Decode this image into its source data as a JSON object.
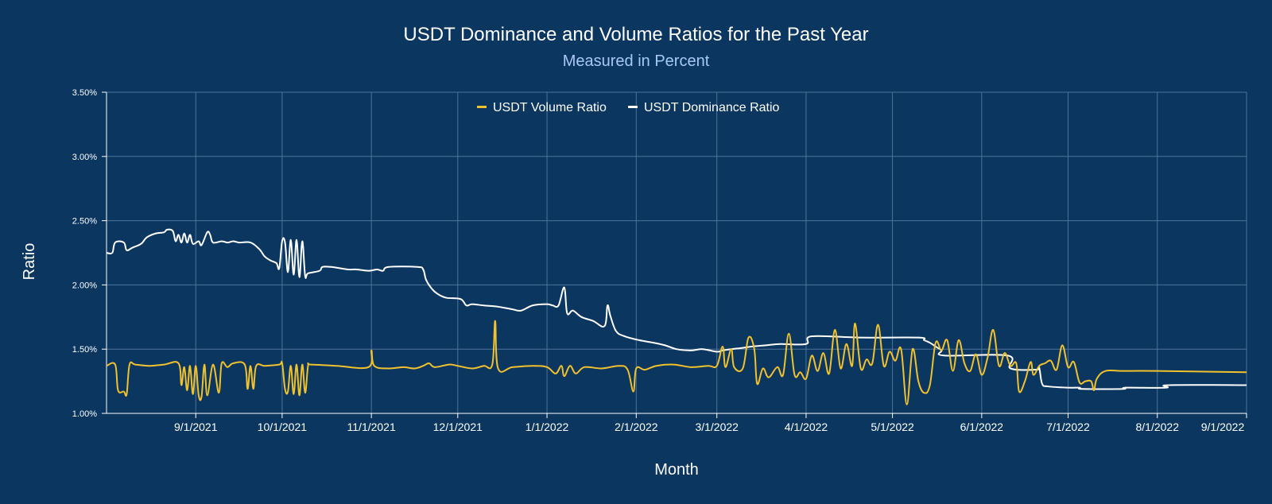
{
  "chart_data": {
    "type": "line",
    "title": "USDT Dominance and Volume Ratios for the Past Year",
    "subtitle": "Measured in Percent",
    "xlabel": "Month",
    "ylabel": "Ratio",
    "ylim": [
      1.0,
      3.5
    ],
    "xlim": [
      "2021-08-01",
      "2022-09-01"
    ],
    "y_ticks": [
      "1.00%",
      "1.50%",
      "2.00%",
      "2.50%",
      "3.00%",
      "3.50%"
    ],
    "x_ticks": [
      "9/1/2021",
      "10/1/2021",
      "11/1/2021",
      "12/1/2021",
      "1/1/2022",
      "2/1/2022",
      "3/1/2022",
      "4/1/2022",
      "5/1/2022",
      "6/1/2022",
      "7/1/2022",
      "8/1/2022",
      "9/1/2022"
    ],
    "grid": true,
    "legend_position": "top-center",
    "colors": {
      "background": "#0a3660",
      "grid": "#4f7398",
      "volume": "#f2c12e",
      "dominance": "#ffffff",
      "subtitle": "#a8c8f5"
    },
    "series": [
      {
        "name": "USDT Volume Ratio",
        "color": "#f2c12e",
        "points": [
          [
            "2021-08-01",
            1.37
          ],
          [
            "2021-08-04",
            1.38
          ],
          [
            "2021-08-05",
            1.18
          ],
          [
            "2021-08-07",
            1.17
          ],
          [
            "2021-08-08",
            1.15
          ],
          [
            "2021-08-09",
            1.38
          ],
          [
            "2021-08-11",
            1.38
          ],
          [
            "2021-08-16",
            1.37
          ],
          [
            "2021-08-21",
            1.38
          ],
          [
            "2021-08-26",
            1.39
          ],
          [
            "2021-08-27",
            1.22
          ],
          [
            "2021-08-28",
            1.36
          ],
          [
            "2021-08-29",
            1.18
          ],
          [
            "2021-08-30",
            1.37
          ],
          [
            "2021-08-31",
            1.15
          ],
          [
            "2021-09-01",
            1.37
          ],
          [
            "2021-09-02",
            1.14
          ],
          [
            "2021-09-03",
            1.13
          ],
          [
            "2021-09-04",
            1.38
          ],
          [
            "2021-09-05",
            1.14
          ],
          [
            "2021-09-07",
            1.38
          ],
          [
            "2021-09-09",
            1.16
          ],
          [
            "2021-09-10",
            1.39
          ],
          [
            "2021-09-12",
            1.36
          ],
          [
            "2021-09-14",
            1.39
          ],
          [
            "2021-09-18",
            1.38
          ],
          [
            "2021-09-19",
            1.19
          ],
          [
            "2021-09-20",
            1.37
          ],
          [
            "2021-09-21",
            1.19
          ],
          [
            "2021-09-22",
            1.37
          ],
          [
            "2021-09-25",
            1.37
          ],
          [
            "2021-09-30",
            1.38
          ],
          [
            "2021-10-01",
            1.39
          ],
          [
            "2021-10-02",
            1.19
          ],
          [
            "2021-10-03",
            1.17
          ],
          [
            "2021-10-04",
            1.37
          ],
          [
            "2021-10-05",
            1.15
          ],
          [
            "2021-10-06",
            1.38
          ],
          [
            "2021-10-07",
            1.14
          ],
          [
            "2021-10-08",
            1.38
          ],
          [
            "2021-10-09",
            1.16
          ],
          [
            "2021-10-10",
            1.37
          ],
          [
            "2021-10-11",
            1.38
          ],
          [
            "2021-10-20",
            1.37
          ],
          [
            "2021-10-31",
            1.36
          ],
          [
            "2021-11-01",
            1.49
          ],
          [
            "2021-11-02",
            1.37
          ],
          [
            "2021-11-07",
            1.35
          ],
          [
            "2021-11-12",
            1.36
          ],
          [
            "2021-11-16",
            1.35
          ],
          [
            "2021-11-19",
            1.37
          ],
          [
            "2021-11-21",
            1.39
          ],
          [
            "2021-11-23",
            1.36
          ],
          [
            "2021-11-28",
            1.38
          ],
          [
            "2021-12-01",
            1.37
          ],
          [
            "2021-12-06",
            1.35
          ],
          [
            "2021-12-10",
            1.37
          ],
          [
            "2021-12-13",
            1.38
          ],
          [
            "2021-12-14",
            1.72
          ],
          [
            "2021-12-15",
            1.35
          ],
          [
            "2021-12-20",
            1.36
          ],
          [
            "2021-12-27",
            1.37
          ],
          [
            "2022-01-01",
            1.36
          ],
          [
            "2022-01-04",
            1.31
          ],
          [
            "2022-01-06",
            1.37
          ],
          [
            "2022-01-07",
            1.29
          ],
          [
            "2022-01-09",
            1.37
          ],
          [
            "2022-01-11",
            1.31
          ],
          [
            "2022-01-14",
            1.36
          ],
          [
            "2022-01-20",
            1.35
          ],
          [
            "2022-01-26",
            1.37
          ],
          [
            "2022-01-29",
            1.34
          ],
          [
            "2022-01-31",
            1.17
          ],
          [
            "2022-02-01",
            1.35
          ],
          [
            "2022-02-04",
            1.34
          ],
          [
            "2022-02-08",
            1.37
          ],
          [
            "2022-02-14",
            1.38
          ],
          [
            "2022-02-20",
            1.36
          ],
          [
            "2022-02-26",
            1.37
          ],
          [
            "2022-03-01",
            1.37
          ],
          [
            "2022-03-03",
            1.52
          ],
          [
            "2022-03-04",
            1.36
          ],
          [
            "2022-03-06",
            1.5
          ],
          [
            "2022-03-07",
            1.36
          ],
          [
            "2022-03-10",
            1.35
          ],
          [
            "2022-03-12",
            1.59
          ],
          [
            "2022-03-14",
            1.5
          ],
          [
            "2022-03-15",
            1.23
          ],
          [
            "2022-03-17",
            1.35
          ],
          [
            "2022-03-19",
            1.28
          ],
          [
            "2022-03-22",
            1.36
          ],
          [
            "2022-03-24",
            1.3
          ],
          [
            "2022-03-26",
            1.62
          ],
          [
            "2022-03-28",
            1.3
          ],
          [
            "2022-03-30",
            1.32
          ],
          [
            "2022-04-01",
            1.27
          ],
          [
            "2022-04-03",
            1.45
          ],
          [
            "2022-04-05",
            1.33
          ],
          [
            "2022-04-07",
            1.47
          ],
          [
            "2022-04-09",
            1.31
          ],
          [
            "2022-04-11",
            1.65
          ],
          [
            "2022-04-13",
            1.35
          ],
          [
            "2022-04-15",
            1.54
          ],
          [
            "2022-04-17",
            1.37
          ],
          [
            "2022-04-18",
            1.7
          ],
          [
            "2022-04-20",
            1.35
          ],
          [
            "2022-04-22",
            1.42
          ],
          [
            "2022-04-24",
            1.39
          ],
          [
            "2022-04-26",
            1.69
          ],
          [
            "2022-04-28",
            1.37
          ],
          [
            "2022-04-30",
            1.48
          ],
          [
            "2022-05-02",
            1.41
          ],
          [
            "2022-05-04",
            1.5
          ],
          [
            "2022-05-06",
            1.07
          ],
          [
            "2022-05-08",
            1.5
          ],
          [
            "2022-05-10",
            1.25
          ],
          [
            "2022-05-12",
            1.16
          ],
          [
            "2022-05-14",
            1.22
          ],
          [
            "2022-05-16",
            1.55
          ],
          [
            "2022-05-18",
            1.49
          ],
          [
            "2022-05-20",
            1.57
          ],
          [
            "2022-05-22",
            1.33
          ],
          [
            "2022-05-24",
            1.57
          ],
          [
            "2022-05-26",
            1.39
          ],
          [
            "2022-05-28",
            1.33
          ],
          [
            "2022-05-30",
            1.46
          ],
          [
            "2022-06-01",
            1.3
          ],
          [
            "2022-06-03",
            1.43
          ],
          [
            "2022-06-05",
            1.65
          ],
          [
            "2022-06-07",
            1.37
          ],
          [
            "2022-06-09",
            1.47
          ],
          [
            "2022-06-11",
            1.37
          ],
          [
            "2022-06-13",
            1.39
          ],
          [
            "2022-06-14",
            1.17
          ],
          [
            "2022-06-16",
            1.25
          ],
          [
            "2022-06-18",
            1.4
          ],
          [
            "2022-06-19",
            1.3
          ],
          [
            "2022-06-21",
            1.37
          ],
          [
            "2022-06-23",
            1.39
          ],
          [
            "2022-06-25",
            1.41
          ],
          [
            "2022-06-27",
            1.34
          ],
          [
            "2022-06-29",
            1.53
          ],
          [
            "2022-07-01",
            1.36
          ],
          [
            "2022-07-03",
            1.4
          ],
          [
            "2022-07-05",
            1.24
          ],
          [
            "2022-07-07",
            1.25
          ],
          [
            "2022-07-09",
            1.25
          ],
          [
            "2022-07-10",
            1.18
          ],
          [
            "2022-07-11",
            1.27
          ],
          [
            "2022-07-14",
            1.33
          ],
          [
            "2022-07-20",
            1.33
          ],
          [
            "2022-08-01",
            1.33
          ],
          [
            "2022-09-01",
            1.32
          ]
        ]
      },
      {
        "name": "USDT Dominance Ratio",
        "color": "#ffffff",
        "points": [
          [
            "2021-08-01",
            2.25
          ],
          [
            "2021-08-03",
            2.25
          ],
          [
            "2021-08-04",
            2.33
          ],
          [
            "2021-08-07",
            2.33
          ],
          [
            "2021-08-08",
            2.27
          ],
          [
            "2021-08-10",
            2.29
          ],
          [
            "2021-08-13",
            2.32
          ],
          [
            "2021-08-15",
            2.37
          ],
          [
            "2021-08-18",
            2.4
          ],
          [
            "2021-08-21",
            2.41
          ],
          [
            "2021-08-22",
            2.43
          ],
          [
            "2021-08-24",
            2.42
          ],
          [
            "2021-08-25",
            2.34
          ],
          [
            "2021-08-26",
            2.39
          ],
          [
            "2021-08-27",
            2.33
          ],
          [
            "2021-08-28",
            2.4
          ],
          [
            "2021-08-29",
            2.33
          ],
          [
            "2021-08-30",
            2.39
          ],
          [
            "2021-08-31",
            2.32
          ],
          [
            "2021-09-02",
            2.34
          ],
          [
            "2021-09-03",
            2.31
          ],
          [
            "2021-09-05",
            2.41
          ],
          [
            "2021-09-06",
            2.39
          ],
          [
            "2021-09-07",
            2.33
          ],
          [
            "2021-09-10",
            2.34
          ],
          [
            "2021-09-12",
            2.33
          ],
          [
            "2021-09-14",
            2.34
          ],
          [
            "2021-09-16",
            2.33
          ],
          [
            "2021-09-20",
            2.33
          ],
          [
            "2021-09-23",
            2.28
          ],
          [
            "2021-09-25",
            2.22
          ],
          [
            "2021-09-27",
            2.19
          ],
          [
            "2021-09-29",
            2.17
          ],
          [
            "2021-09-30",
            2.13
          ],
          [
            "2021-10-01",
            2.34
          ],
          [
            "2021-10-02",
            2.33
          ],
          [
            "2021-10-03",
            2.1
          ],
          [
            "2021-10-04",
            2.35
          ],
          [
            "2021-10-05",
            2.08
          ],
          [
            "2021-10-06",
            2.35
          ],
          [
            "2021-10-07",
            2.06
          ],
          [
            "2021-10-08",
            2.34
          ],
          [
            "2021-10-09",
            2.07
          ],
          [
            "2021-10-10",
            2.09
          ],
          [
            "2021-10-14",
            2.11
          ],
          [
            "2021-10-15",
            2.14
          ],
          [
            "2021-10-18",
            2.14
          ],
          [
            "2021-10-21",
            2.13
          ],
          [
            "2021-10-24",
            2.12
          ],
          [
            "2021-10-27",
            2.12
          ],
          [
            "2021-10-31",
            2.11
          ],
          [
            "2021-11-03",
            2.12
          ],
          [
            "2021-11-05",
            2.11
          ],
          [
            "2021-11-07",
            2.14
          ],
          [
            "2021-11-17",
            2.14
          ],
          [
            "2021-11-19",
            2.12
          ],
          [
            "2021-11-20",
            2.04
          ],
          [
            "2021-11-22",
            1.97
          ],
          [
            "2021-11-24",
            1.93
          ],
          [
            "2021-11-27",
            1.9
          ],
          [
            "2021-12-02",
            1.89
          ],
          [
            "2021-12-04",
            1.84
          ],
          [
            "2021-12-06",
            1.85
          ],
          [
            "2021-12-10",
            1.84
          ],
          [
            "2021-12-15",
            1.83
          ],
          [
            "2021-12-20",
            1.81
          ],
          [
            "2021-12-23",
            1.8
          ],
          [
            "2021-12-27",
            1.84
          ],
          [
            "2022-01-01",
            1.85
          ],
          [
            "2022-01-03",
            1.84
          ],
          [
            "2022-01-05",
            1.84
          ],
          [
            "2022-01-07",
            1.98
          ],
          [
            "2022-01-08",
            1.78
          ],
          [
            "2022-01-10",
            1.8
          ],
          [
            "2022-01-13",
            1.75
          ],
          [
            "2022-01-17",
            1.72
          ],
          [
            "2022-01-21",
            1.68
          ],
          [
            "2022-01-22",
            1.84
          ],
          [
            "2022-01-23",
            1.76
          ],
          [
            "2022-01-25",
            1.64
          ],
          [
            "2022-01-28",
            1.6
          ],
          [
            "2022-02-02",
            1.57
          ],
          [
            "2022-02-07",
            1.55
          ],
          [
            "2022-02-11",
            1.53
          ],
          [
            "2022-02-15",
            1.5
          ],
          [
            "2022-02-20",
            1.49
          ],
          [
            "2022-02-24",
            1.5
          ],
          [
            "2022-03-01",
            1.48
          ],
          [
            "2022-03-03",
            1.49
          ],
          [
            "2022-03-06",
            1.5
          ],
          [
            "2022-03-10",
            1.51
          ],
          [
            "2022-03-13",
            1.52
          ],
          [
            "2022-03-18",
            1.53
          ],
          [
            "2022-03-23",
            1.54
          ],
          [
            "2022-04-01",
            1.54
          ],
          [
            "2022-04-03",
            1.6
          ],
          [
            "2022-04-20",
            1.59
          ],
          [
            "2022-05-10",
            1.59
          ],
          [
            "2022-05-12",
            1.57
          ],
          [
            "2022-05-14",
            1.55
          ],
          [
            "2022-05-16",
            1.52
          ],
          [
            "2022-05-18",
            1.49
          ],
          [
            "2022-05-19",
            1.45
          ],
          [
            "2022-06-10",
            1.45
          ],
          [
            "2022-06-11",
            1.35
          ],
          [
            "2022-06-20",
            1.34
          ],
          [
            "2022-06-21",
            1.35
          ],
          [
            "2022-06-22",
            1.23
          ],
          [
            "2022-06-24",
            1.21
          ],
          [
            "2022-07-01",
            1.2
          ],
          [
            "2022-07-05",
            1.2
          ],
          [
            "2022-07-06",
            1.19
          ],
          [
            "2022-07-20",
            1.19
          ],
          [
            "2022-07-21",
            1.2
          ],
          [
            "2022-08-04",
            1.2
          ],
          [
            "2022-08-05",
            1.22
          ],
          [
            "2022-09-01",
            1.22
          ]
        ]
      }
    ]
  }
}
